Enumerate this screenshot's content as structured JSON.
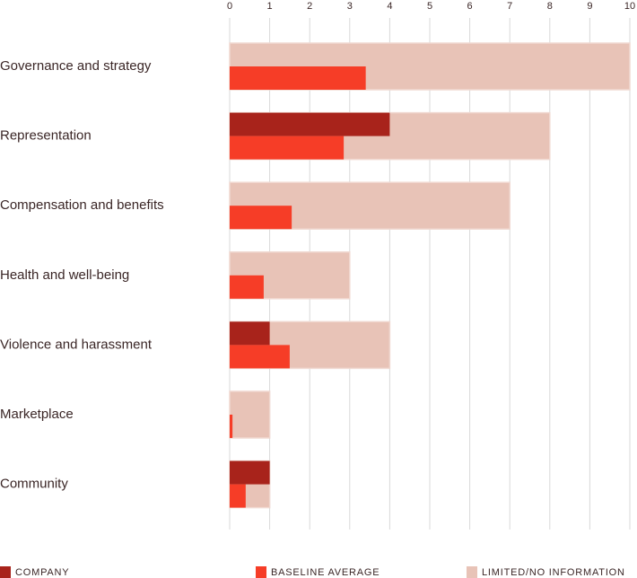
{
  "chart_data": {
    "type": "bar",
    "categories": [
      "Governance and strategy",
      "Representation",
      "Compensation and benefits",
      "Health and well-being",
      "Violence and harassment",
      "Marketplace",
      "Community"
    ],
    "series": [
      {
        "name": "COMPANY",
        "color": "#a8231b",
        "values": [
          0,
          4,
          0,
          0,
          1,
          0,
          1
        ]
      },
      {
        "name": "BASELINE AVERAGE",
        "color": "#f63d27",
        "values": [
          3.4,
          2.85,
          1.55,
          0.85,
          1.5,
          0.07,
          0.4
        ]
      },
      {
        "name": "LIMITED/NO INFORMATION",
        "color": "#e8c3b7",
        "values": [
          10,
          8,
          7,
          3,
          4,
          1,
          1
        ]
      }
    ],
    "xlim": [
      0,
      10
    ],
    "xticks": [
      0,
      1,
      2,
      3,
      4,
      5,
      6,
      7,
      8,
      9,
      10
    ],
    "grid": true
  }
}
